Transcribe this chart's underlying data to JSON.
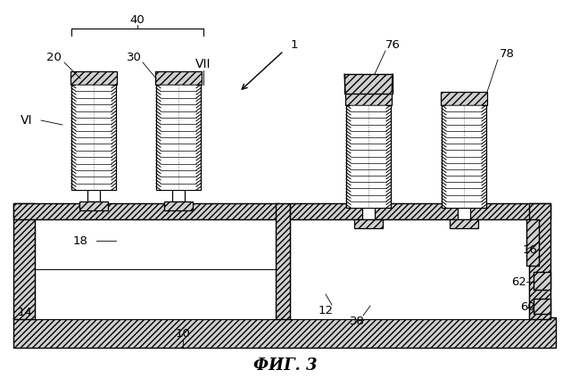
{
  "title": "ФИГ. 3",
  "title_fontsize": 13,
  "title_style": "italic",
  "background_color": "#ffffff",
  "fig_width": 6.4,
  "fig_height": 4.24,
  "dpi": 100
}
